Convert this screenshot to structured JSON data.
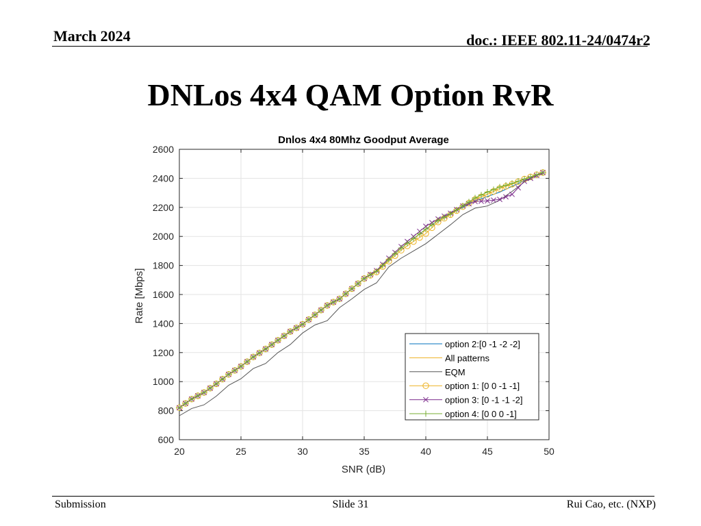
{
  "header": {
    "date": "March 2024",
    "doc": "doc.: IEEE 802.11-24/0474r2"
  },
  "slide": {
    "title": "DNLos 4x4 QAM Option RvR"
  },
  "footer": {
    "left": "Submission",
    "center": "Slide 31",
    "right": "Rui Cao, etc. (NXP)"
  },
  "chart_data": {
    "type": "line",
    "title": "Dnlos 4x4  80Mhz Goodput Average",
    "xlabel": "SNR (dB)",
    "ylabel": "Rate [Mbps]",
    "xlim": [
      20,
      50
    ],
    "ylim": [
      600,
      2600
    ],
    "xticks": [
      20,
      25,
      30,
      35,
      40,
      45,
      50
    ],
    "yticks": [
      600,
      800,
      1000,
      1200,
      1400,
      1600,
      1800,
      2000,
      2200,
      2400,
      2600
    ],
    "grid": true,
    "legend_position": "bottom-right",
    "x": [
      20,
      21,
      22,
      23,
      24,
      25,
      26,
      27,
      28,
      29,
      30,
      31,
      32,
      33,
      34,
      35,
      36,
      37,
      38,
      39,
      40,
      41,
      42,
      43,
      44,
      45,
      46,
      47,
      48,
      49,
      49.5
    ],
    "series": [
      {
        "name": "option 2:[0 -1 -2 -2]",
        "color": "#0072BD",
        "marker": "none",
        "values": [
          820,
          880,
          925,
          985,
          1050,
          1105,
          1170,
          1225,
          1285,
          1345,
          1395,
          1460,
          1525,
          1570,
          1640,
          1710,
          1760,
          1840,
          1920,
          1985,
          2050,
          2110,
          2155,
          2200,
          2245,
          2275,
          2305,
          2345,
          2385,
          2420,
          2440
        ]
      },
      {
        "name": "All patterns",
        "color": "#EDB120",
        "marker": "none",
        "values": [
          820,
          880,
          925,
          985,
          1050,
          1105,
          1170,
          1225,
          1285,
          1345,
          1395,
          1460,
          1525,
          1570,
          1640,
          1710,
          1760,
          1840,
          1920,
          1985,
          2050,
          2110,
          2155,
          2205,
          2255,
          2290,
          2330,
          2360,
          2395,
          2425,
          2440
        ]
      },
      {
        "name": "EQM",
        "color": "#555555",
        "marker": "none",
        "values": [
          765,
          815,
          840,
          900,
          975,
          1020,
          1090,
          1125,
          1200,
          1255,
          1335,
          1390,
          1420,
          1510,
          1570,
          1635,
          1680,
          1790,
          1850,
          1900,
          1950,
          2015,
          2080,
          2150,
          2195,
          2210,
          2250,
          2310,
          2375,
          2420,
          2430
        ]
      },
      {
        "name": "option 1: [0 0 -1 -1]",
        "color": "#EDB120",
        "marker": "circle",
        "values": [
          820,
          880,
          925,
          985,
          1050,
          1105,
          1170,
          1225,
          1285,
          1345,
          1395,
          1460,
          1525,
          1570,
          1640,
          1710,
          1755,
          1830,
          1905,
          1965,
          2020,
          2100,
          2150,
          2205,
          2255,
          2290,
          2330,
          2360,
          2395,
          2425,
          2440
        ]
      },
      {
        "name": "option 3: [0 -1 -1 -2]",
        "color": "#7E2F8E",
        "marker": "x",
        "values": [
          820,
          880,
          925,
          985,
          1050,
          1105,
          1170,
          1225,
          1285,
          1345,
          1395,
          1460,
          1525,
          1570,
          1640,
          1710,
          1765,
          1850,
          1930,
          2000,
          2070,
          2120,
          2160,
          2210,
          2240,
          2245,
          2255,
          2290,
          2380,
          2420,
          2440
        ]
      },
      {
        "name": "option 4: [0 0 0 -1]",
        "color": "#77AC30",
        "marker": "plus",
        "values": [
          820,
          880,
          925,
          985,
          1050,
          1105,
          1170,
          1225,
          1285,
          1345,
          1395,
          1460,
          1525,
          1570,
          1640,
          1710,
          1760,
          1840,
          1920,
          1985,
          2050,
          2110,
          2155,
          2210,
          2265,
          2305,
          2340,
          2365,
          2395,
          2425,
          2440
        ]
      }
    ]
  }
}
